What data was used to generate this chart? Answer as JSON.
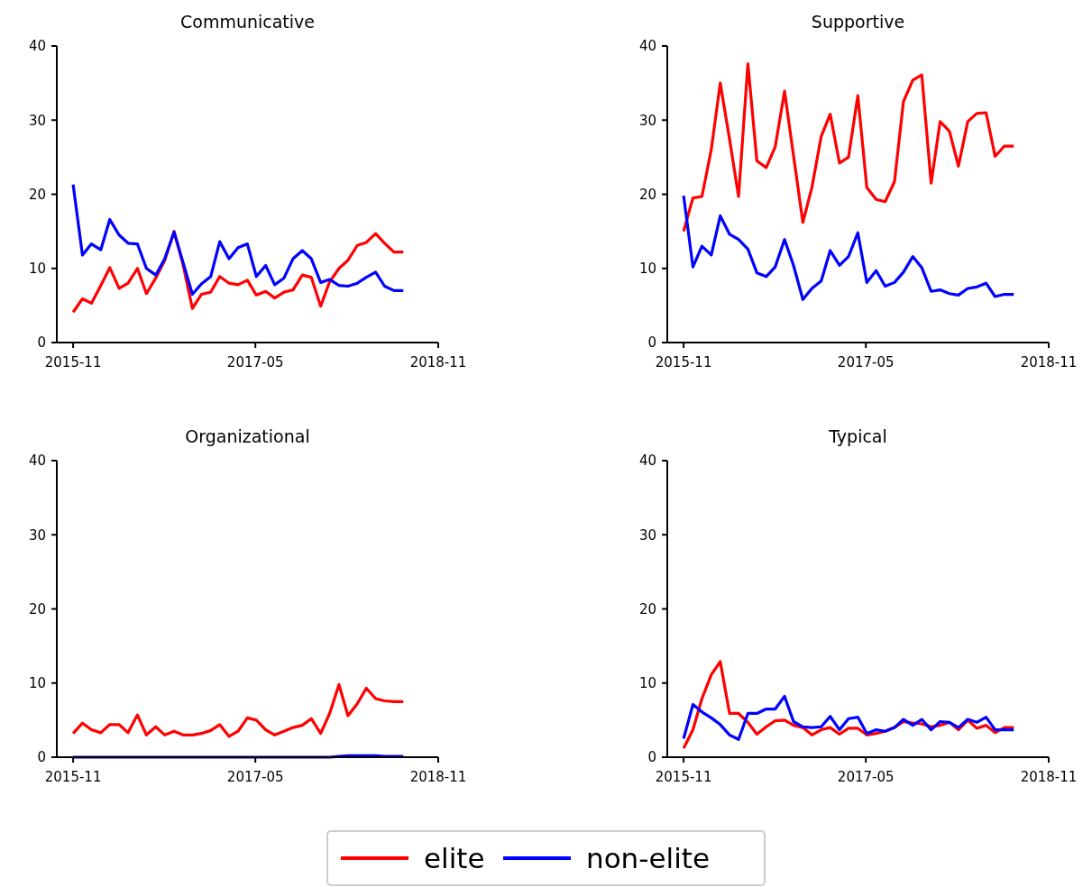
{
  "chart_data": [
    {
      "type": "line",
      "title": "Communicative",
      "xlim": [
        "2015-09-13",
        "2018-11-01"
      ],
      "xticks": [
        {
          "value": "2015-11-01",
          "label": "2015-11"
        },
        {
          "value": "2017-05-01",
          "label": "2017-05"
        },
        {
          "value": "2018-11-01",
          "label": "2018-11"
        }
      ],
      "ylim": [
        0,
        40
      ],
      "yticks": [
        0,
        10,
        20,
        30,
        40
      ],
      "grid": false,
      "legend": "bottom",
      "x": [
        "2015-11-01",
        "2015-11-29",
        "2015-12-26",
        "2016-01-23",
        "2016-02-19",
        "2016-03-18",
        "2016-04-14",
        "2016-05-12",
        "2016-06-08",
        "2016-07-06",
        "2016-08-02",
        "2016-08-30",
        "2016-09-26",
        "2016-10-24",
        "2016-11-20",
        "2016-12-18",
        "2017-01-14",
        "2017-02-11",
        "2017-03-10",
        "2017-04-07",
        "2017-05-04",
        "2017-06-01",
        "2017-06-28",
        "2017-07-26",
        "2017-08-22",
        "2017-09-19",
        "2017-10-16",
        "2017-11-13",
        "2017-12-10",
        "2018-01-07",
        "2018-02-03",
        "2018-03-03",
        "2018-03-30",
        "2018-04-27",
        "2018-05-24",
        "2018-06-21",
        "2018-07-19"
      ],
      "series": [
        {
          "name": "elite",
          "color": "#ff0000",
          "values": [
            4.1,
            5.9,
            5.3,
            7.7,
            10.1,
            7.3,
            8.0,
            10.0,
            6.6,
            8.7,
            11.1,
            15.0,
            10.5,
            4.6,
            6.5,
            6.8,
            8.9,
            8.0,
            7.8,
            8.4,
            6.4,
            6.9,
            6.0,
            6.8,
            7.1,
            9.1,
            8.8,
            4.9,
            8.2,
            10.0,
            11.1,
            13.1,
            13.5,
            14.7,
            13.4,
            12.2,
            12.2
          ]
        },
        {
          "name": "non-elite",
          "color": "#0000ff",
          "values": [
            21.3,
            11.8,
            13.3,
            12.5,
            16.6,
            14.5,
            13.4,
            13.3,
            10.0,
            9.1,
            11.3,
            14.9,
            10.8,
            6.5,
            7.9,
            8.9,
            13.6,
            11.3,
            12.8,
            13.3,
            8.9,
            10.4,
            7.8,
            8.7,
            11.3,
            12.4,
            11.3,
            8.1,
            8.5,
            7.7,
            7.6,
            8.0,
            8.8,
            9.5,
            7.6,
            7.0,
            7.0
          ]
        }
      ]
    },
    {
      "type": "line",
      "title": "Supportive",
      "xlim": [
        "2015-09-13",
        "2018-11-01"
      ],
      "xticks": [
        {
          "value": "2015-11-01",
          "label": "2015-11"
        },
        {
          "value": "2017-05-01",
          "label": "2017-05"
        },
        {
          "value": "2018-11-01",
          "label": "2018-11"
        }
      ],
      "ylim": [
        0,
        40
      ],
      "yticks": [
        0,
        10,
        20,
        30,
        40
      ],
      "grid": false,
      "x": [
        "2015-11-01",
        "2015-11-29",
        "2015-12-26",
        "2016-01-23",
        "2016-02-19",
        "2016-03-18",
        "2016-04-14",
        "2016-05-12",
        "2016-06-08",
        "2016-07-06",
        "2016-08-02",
        "2016-08-30",
        "2016-09-26",
        "2016-10-24",
        "2016-11-20",
        "2016-12-18",
        "2017-01-14",
        "2017-02-11",
        "2017-03-10",
        "2017-04-07",
        "2017-05-04",
        "2017-06-01",
        "2017-06-28",
        "2017-07-26",
        "2017-08-22",
        "2017-09-19",
        "2017-10-16",
        "2017-11-13",
        "2017-12-10",
        "2018-01-07",
        "2018-02-03",
        "2018-03-03",
        "2018-03-30",
        "2018-04-27",
        "2018-05-24",
        "2018-06-21",
        "2018-07-19"
      ],
      "series": [
        {
          "color": "#ff0000",
          "values": [
            15.0,
            19.5,
            19.7,
            26.0,
            35.0,
            27.4,
            19.7,
            37.6,
            24.5,
            23.6,
            26.4,
            33.9,
            25.2,
            16.2,
            20.9,
            27.8,
            30.8,
            24.2,
            25.0,
            33.3,
            20.9,
            19.3,
            19.0,
            21.7,
            32.5,
            35.4,
            36.1,
            21.5,
            29.8,
            28.5,
            23.8,
            29.8,
            30.9,
            31.0,
            25.1,
            26.5,
            26.5
          ]
        },
        {
          "color": "#0000ff",
          "values": [
            19.8,
            10.2,
            13.0,
            11.8,
            17.1,
            14.6,
            13.9,
            12.6,
            9.4,
            8.9,
            10.2,
            13.9,
            10.4,
            5.8,
            7.3,
            8.3,
            12.4,
            10.4,
            11.6,
            14.8,
            8.1,
            9.7,
            7.6,
            8.1,
            9.5,
            11.6,
            10.1,
            6.9,
            7.1,
            6.6,
            6.4,
            7.3,
            7.5,
            8.0,
            6.2,
            6.5,
            6.5
          ]
        }
      ]
    },
    {
      "type": "line",
      "title": "Organizational",
      "xlim": [
        "2015-09-13",
        "2018-11-01"
      ],
      "xticks": [
        {
          "value": "2015-11-01",
          "label": "2015-11"
        },
        {
          "value": "2017-05-01",
          "label": "2017-05"
        },
        {
          "value": "2018-11-01",
          "label": "2018-11"
        }
      ],
      "ylim": [
        0,
        40
      ],
      "yticks": [
        0,
        10,
        20,
        30,
        40
      ],
      "grid": false,
      "x": [
        "2015-11-01",
        "2015-11-29",
        "2015-12-26",
        "2016-01-23",
        "2016-02-19",
        "2016-03-18",
        "2016-04-14",
        "2016-05-12",
        "2016-06-08",
        "2016-07-06",
        "2016-08-02",
        "2016-08-30",
        "2016-09-26",
        "2016-10-24",
        "2016-11-20",
        "2016-12-18",
        "2017-01-14",
        "2017-02-11",
        "2017-03-10",
        "2017-04-07",
        "2017-05-04",
        "2017-06-01",
        "2017-06-28",
        "2017-07-26",
        "2017-08-22",
        "2017-09-19",
        "2017-10-16",
        "2017-11-13",
        "2017-12-10",
        "2018-01-07",
        "2018-02-03",
        "2018-03-03",
        "2018-03-30",
        "2018-04-27",
        "2018-05-24",
        "2018-06-21",
        "2018-07-19"
      ],
      "series": [
        {
          "color": "#ff0000",
          "values": [
            3.2,
            4.6,
            3.7,
            3.3,
            4.4,
            4.4,
            3.3,
            5.7,
            3.0,
            4.1,
            3.0,
            3.5,
            3.0,
            3.0,
            3.2,
            3.6,
            4.4,
            2.8,
            3.5,
            5.3,
            5.0,
            3.7,
            3.0,
            3.5,
            4.0,
            4.3,
            5.2,
            3.2,
            5.9,
            9.8,
            5.6,
            7.2,
            9.3,
            7.9,
            7.6,
            7.5,
            7.5
          ]
        },
        {
          "color": "#0000ff",
          "values": [
            0,
            0,
            0,
            0,
            0,
            0,
            0,
            0,
            0,
            0,
            0,
            0,
            0,
            0,
            0,
            0,
            0,
            0,
            0,
            0,
            0,
            0,
            0,
            0,
            0,
            0,
            0,
            0,
            0,
            0.1,
            0.2,
            0.2,
            0.2,
            0.2,
            0.1,
            0.1,
            0.1
          ]
        }
      ]
    },
    {
      "type": "line",
      "title": "Typical",
      "xlim": [
        "2015-09-13",
        "2018-11-01"
      ],
      "xticks": [
        {
          "value": "2015-11-01",
          "label": "2015-11"
        },
        {
          "value": "2017-05-01",
          "label": "2017-05"
        },
        {
          "value": "2018-11-01",
          "label": "2018-11"
        }
      ],
      "ylim": [
        0,
        40
      ],
      "yticks": [
        0,
        10,
        20,
        30,
        40
      ],
      "grid": false,
      "x": [
        "2015-11-01",
        "2015-11-29",
        "2015-12-26",
        "2016-01-23",
        "2016-02-19",
        "2016-03-18",
        "2016-04-14",
        "2016-05-12",
        "2016-06-08",
        "2016-07-06",
        "2016-08-02",
        "2016-08-30",
        "2016-09-26",
        "2016-10-24",
        "2016-11-20",
        "2016-12-18",
        "2017-01-14",
        "2017-02-11",
        "2017-03-10",
        "2017-04-07",
        "2017-05-04",
        "2017-06-01",
        "2017-06-28",
        "2017-07-26",
        "2017-08-22",
        "2017-09-19",
        "2017-10-16",
        "2017-11-13",
        "2017-12-10",
        "2018-01-07",
        "2018-02-03",
        "2018-03-03",
        "2018-03-30",
        "2018-04-27",
        "2018-05-24",
        "2018-06-21",
        "2018-07-19"
      ],
      "series": [
        {
          "color": "#ff0000",
          "values": [
            1.2,
            3.7,
            7.9,
            11.1,
            12.9,
            5.9,
            5.9,
            4.7,
            3.1,
            4.1,
            4.9,
            5.0,
            4.3,
            4.0,
            3.0,
            3.7,
            4.0,
            3.1,
            3.9,
            3.9,
            3.0,
            3.2,
            3.5,
            4.0,
            4.8,
            4.6,
            4.5,
            4.1,
            4.3,
            4.7,
            3.7,
            5.0,
            3.9,
            4.3,
            3.3,
            4.0,
            4.0
          ]
        },
        {
          "color": "#0000ff",
          "values": [
            2.5,
            7.1,
            6.1,
            5.3,
            4.4,
            3.0,
            2.4,
            5.9,
            5.9,
            6.5,
            6.5,
            8.2,
            4.8,
            4.1,
            4.0,
            4.1,
            5.5,
            3.7,
            5.2,
            5.4,
            3.2,
            3.7,
            3.5,
            4.0,
            5.1,
            4.3,
            5.1,
            3.7,
            4.8,
            4.7,
            4.0,
            5.1,
            4.7,
            5.4,
            3.7,
            3.7,
            3.7
          ]
        }
      ]
    }
  ]
}
